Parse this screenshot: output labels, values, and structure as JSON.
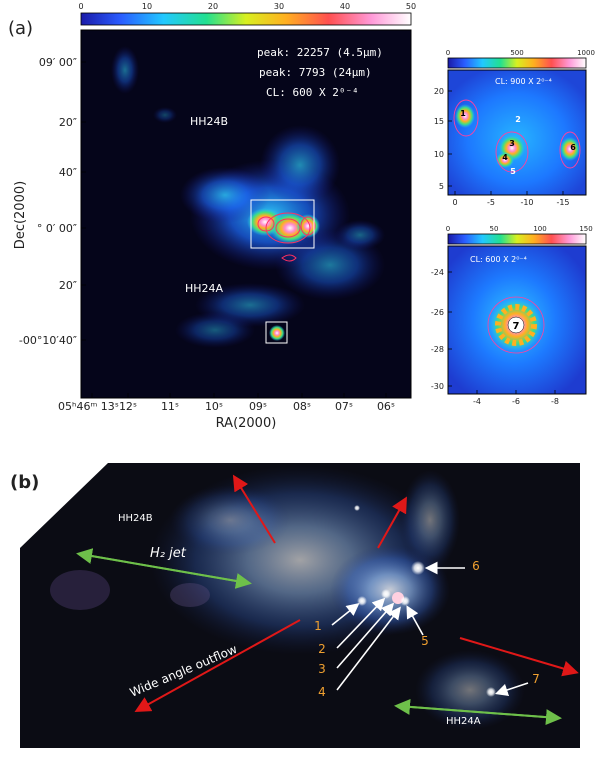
{
  "panel_a": {
    "label": "(a)",
    "colorbar_ticks": [
      "0",
      "10",
      "20",
      "30",
      "40",
      "50"
    ],
    "annotations": {
      "peak1": "peak: 22257 (4.5μm)",
      "peak2": "peak: 7793 (24μm)",
      "cl": "CL: 600 X 2⁰⁻⁴"
    },
    "region_labels": [
      "HH24B",
      "HH24A"
    ],
    "dec_label": "Dec(2000)",
    "ra_label": "RA(2000)",
    "dec_ticks": [
      "09′ 00″",
      "20″",
      "40″",
      "° 0′ 00″",
      "20″",
      "-00°10′40″"
    ],
    "ra_ticks": [
      "05ʰ46ᵐ 13ˢ",
      "12ˢ",
      "11ˢ",
      "10ˢ",
      "09ˢ",
      "08ˢ",
      "07ˢ",
      "06ˢ"
    ]
  },
  "inset_top": {
    "colorbar_ticks": [
      "0",
      "500",
      "1000"
    ],
    "cl": "CL: 900 X 2⁰⁻⁴",
    "y_ticks": [
      "20",
      "15",
      "10",
      "5"
    ],
    "x_ticks": [
      "0",
      "-5",
      "-10",
      "-15"
    ],
    "sources": [
      "1",
      "2",
      "3",
      "4",
      "5",
      "6"
    ]
  },
  "inset_bottom": {
    "colorbar_ticks": [
      "0",
      "50",
      "100",
      "150"
    ],
    "cl": "CL: 600 X 2⁰⁻⁴",
    "y_ticks": [
      "-24",
      "-26",
      "-28",
      "-30"
    ],
    "x_ticks": [
      "-4",
      "-6",
      "-8"
    ],
    "source": "7"
  },
  "panel_b": {
    "label": "(b)",
    "hh24b": "HH24B",
    "hh24a": "HH24A",
    "h2jet": "H₂ jet",
    "outflow": "Wide angle outflow",
    "sources": [
      "1",
      "2",
      "3",
      "4",
      "5",
      "6",
      "7"
    ]
  },
  "colors": {
    "outflow_arrow": "#e01818",
    "jet_arrow": "#6ec04a",
    "source_label": "#f0a030"
  }
}
